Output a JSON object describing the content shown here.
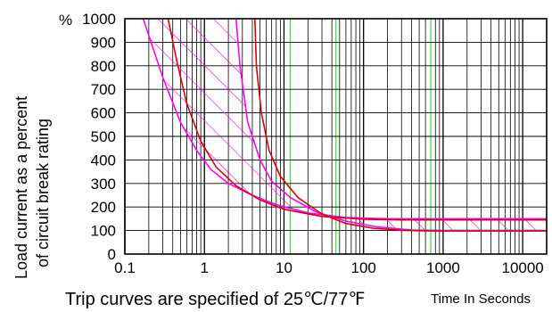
{
  "chart_data": {
    "type": "line",
    "x_scale": "log",
    "x_ticks": [
      "0.1",
      "1",
      "10",
      "100",
      "1000",
      "10000"
    ],
    "y_ticks": [
      "0",
      "100",
      "200",
      "300",
      "400",
      "500",
      "600",
      "700",
      "800",
      "900",
      "1000"
    ],
    "y_top_prefix": "%",
    "xlim": [
      0.1,
      20000
    ],
    "ylim": [
      0,
      1000
    ],
    "ylabel_line1": "Load current as a percent",
    "ylabel_line2": "of circuit break rating",
    "caption": "Trip curves are specified of 25℃/77℉",
    "xlabel": "Time In Seconds",
    "green_gridlines_x": [
      12,
      45,
      700
    ],
    "series": [
      {
        "color": "#ff00ff",
        "x": [
          0.17,
          0.3,
          0.5,
          0.8,
          1.2,
          2.0,
          4.0,
          8.0,
          20,
          60,
          200,
          1000,
          20000
        ],
        "y": [
          1000,
          750,
          560,
          440,
          360,
          300,
          250,
          210,
          175,
          155,
          150,
          150,
          150
        ]
      },
      {
        "color": "#ff00ff",
        "x": [
          2.5,
          2.8,
          3.5,
          5,
          7,
          12,
          25,
          60,
          150,
          400,
          1000,
          5000,
          20000
        ],
        "y": [
          1000,
          800,
          560,
          400,
          310,
          240,
          180,
          140,
          115,
          102,
          100,
          100,
          100
        ]
      },
      {
        "color": "#dd0000",
        "x": [
          0.35,
          0.45,
          0.6,
          0.9,
          1.4,
          2.5,
          5,
          10,
          30,
          100,
          300,
          2000,
          20000
        ],
        "y": [
          1000,
          820,
          640,
          480,
          370,
          290,
          230,
          190,
          160,
          148,
          145,
          145,
          145
        ]
      },
      {
        "color": "#dd0000",
        "x": [
          4.3,
          4.5,
          5.2,
          6.5,
          9,
          15,
          30,
          60,
          130,
          300,
          700,
          3000,
          20000
        ],
        "y": [
          1000,
          800,
          600,
          440,
          330,
          240,
          170,
          130,
          110,
          101,
          98,
          98,
          98
        ]
      }
    ]
  }
}
